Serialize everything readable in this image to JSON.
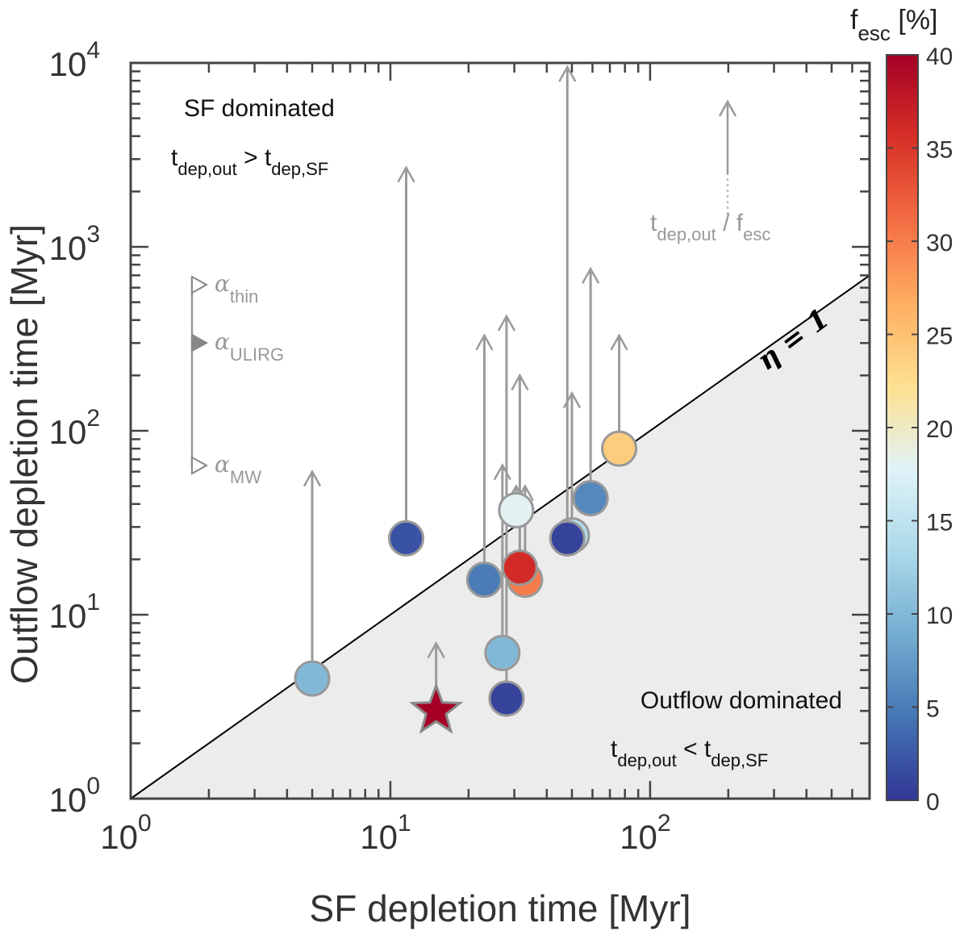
{
  "chart_data": {
    "type": "scatter",
    "xlabel": "SF depletion time [Myr]",
    "ylabel": "Outflow depletion time [Myr]",
    "x_scale": "log",
    "y_scale": "log",
    "xlim": [
      1,
      700
    ],
    "ylim": [
      1,
      10000
    ],
    "x_ticks": [
      {
        "value": 1,
        "mantissa": "10",
        "exp": "0"
      },
      {
        "value": 10,
        "mantissa": "10",
        "exp": "1"
      },
      {
        "value": 100,
        "mantissa": "10",
        "exp": "2"
      }
    ],
    "y_ticks": [
      {
        "value": 1,
        "mantissa": "10",
        "exp": "0"
      },
      {
        "value": 10,
        "mantissa": "10",
        "exp": "1"
      },
      {
        "value": 100,
        "mantissa": "10",
        "exp": "2"
      },
      {
        "value": 1000,
        "mantissa": "10",
        "exp": "3"
      },
      {
        "value": 10000,
        "mantissa": "10",
        "exp": "4"
      }
    ],
    "grid": false,
    "one_to_one_line": {
      "label": "η = 1"
    },
    "regions": {
      "upper": {
        "title": "SF dominated",
        "rel_main": "t",
        "rel_sub1": "dep,out",
        "rel_op": " > t",
        "rel_sub2": "dep,SF"
      },
      "lower": {
        "title": "Outflow dominated",
        "rel_main": "t",
        "rel_sub1": "dep,out",
        "rel_op": " < t",
        "rel_sub2": "dep,SF"
      }
    },
    "legend_arrow": {
      "main": "t",
      "sub1": "dep,out",
      "mid": " / f",
      "sub2": "esc"
    },
    "alpha_legend": [
      {
        "symbol": "α",
        "sub": "thin",
        "marker": "open-triangle"
      },
      {
        "symbol": "α",
        "sub": "ULIRG",
        "marker": "filled-triangle"
      },
      {
        "symbol": "α",
        "sub": "MW",
        "marker": "open-triangle"
      }
    ],
    "colorbar": {
      "label_main": "f",
      "label_sub": "esc",
      "label_unit": " [%]",
      "range": [
        0,
        40
      ],
      "ticks": [
        0,
        5,
        10,
        15,
        20,
        25,
        30,
        35,
        40
      ],
      "colormap": [
        "#313695",
        "#4575b4",
        "#74add1",
        "#abd9e9",
        "#e0f3f8",
        "#fee090",
        "#fdae61",
        "#f46d43",
        "#d73027",
        "#a50026"
      ]
    },
    "points": [
      {
        "x": 5.0,
        "y": 4.5,
        "y_arrow_top": 60,
        "f_esc": 10,
        "marker": "circle"
      },
      {
        "x": 11.5,
        "y": 26,
        "y_arrow_top": 2700,
        "f_esc": 2,
        "marker": "circle"
      },
      {
        "x": 15,
        "y": 3.0,
        "y_arrow_top": 7,
        "f_esc": 40,
        "marker": "star"
      },
      {
        "x": 23,
        "y": 15.5,
        "y_arrow_top": 330,
        "f_esc": 5,
        "marker": "circle"
      },
      {
        "x": 27,
        "y": 6.2,
        "y_arrow_top": 65,
        "f_esc": 10,
        "marker": "circle"
      },
      {
        "x": 28,
        "y": 3.5,
        "y_arrow_top": 420,
        "f_esc": 1,
        "marker": "circle"
      },
      {
        "x": 33,
        "y": 15.5,
        "y_arrow_top": 50,
        "f_esc": 30,
        "marker": "circle"
      },
      {
        "x": 31.5,
        "y": 18,
        "y_arrow_top": 200,
        "f_esc": 36,
        "marker": "circle"
      },
      {
        "x": 30.5,
        "y": 37,
        "y_arrow_top": 50,
        "f_esc": 18,
        "marker": "circle"
      },
      {
        "x": 50,
        "y": 27,
        "y_arrow_top": 160,
        "f_esc": 14,
        "marker": "circle"
      },
      {
        "x": 48,
        "y": 26,
        "y_arrow_top": 9500,
        "f_esc": 1,
        "marker": "circle"
      },
      {
        "x": 59,
        "y": 43,
        "y_arrow_top": 760,
        "f_esc": 6,
        "marker": "circle"
      },
      {
        "x": 76,
        "y": 80,
        "y_arrow_top": 330,
        "f_esc": 24,
        "marker": "circle"
      }
    ]
  }
}
